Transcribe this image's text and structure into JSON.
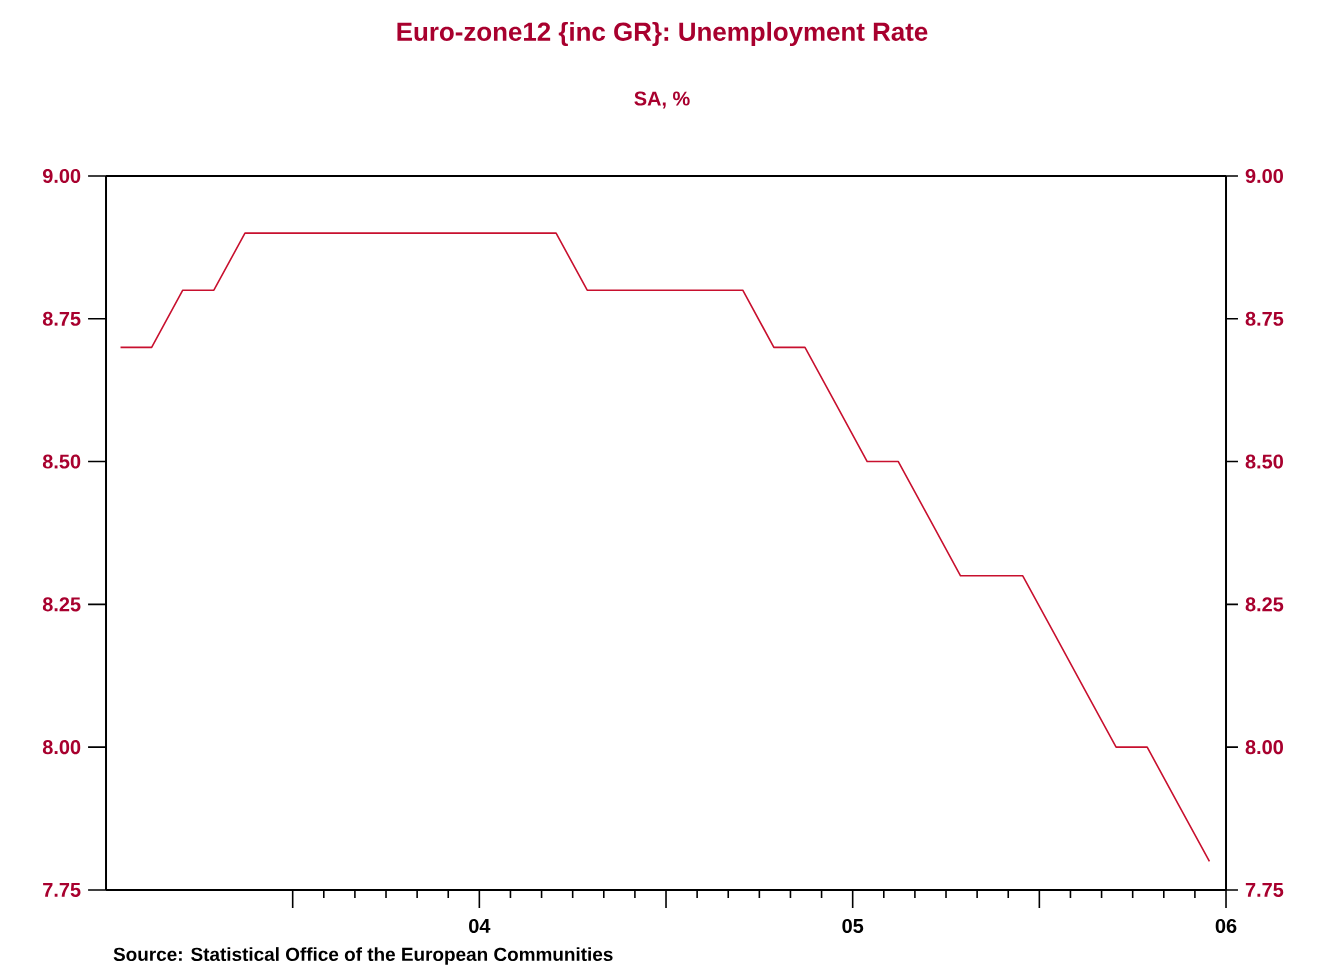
{
  "chart_data": {
    "type": "line",
    "title": "Euro-zone12 {inc GR}: Unemployment Rate",
    "subtitle": "SA, %",
    "annotations": [
      "Source:  Statistical Office of the European Communities"
    ],
    "x": [
      "2003-01-15",
      "2003-02-15",
      "2003-03-15",
      "2003-04-15",
      "2003-05-15",
      "2003-06-15",
      "2003-07-15",
      "2003-08-15",
      "2003-09-15",
      "2003-10-15",
      "2003-11-15",
      "2003-12-15",
      "2004-01-15",
      "2004-02-15",
      "2004-03-15",
      "2004-04-15",
      "2004-05-15",
      "2004-06-15",
      "2004-07-15",
      "2004-08-15",
      "2004-09-15",
      "2004-10-15",
      "2004-11-15",
      "2004-12-15",
      "2005-01-15",
      "2005-02-15",
      "2005-03-15",
      "2005-04-15",
      "2005-05-15",
      "2005-06-15",
      "2005-07-15",
      "2005-08-15",
      "2005-09-15",
      "2005-10-15",
      "2005-11-15",
      "2005-12-15"
    ],
    "values": [
      8.7,
      8.7,
      8.8,
      8.8,
      8.9,
      8.9,
      8.9,
      8.9,
      8.9,
      8.9,
      8.9,
      8.9,
      8.9,
      8.9,
      8.9,
      8.8,
      8.8,
      8.8,
      8.8,
      8.8,
      8.8,
      8.7,
      8.7,
      8.6,
      8.5,
      8.5,
      8.4,
      8.3,
      8.3,
      8.3,
      8.2,
      8.1,
      8.0,
      8.0,
      7.9,
      7.8
    ],
    "color": "#c8102e",
    "line_style": "solid",
    "marker": "none",
    "xlim": [
      "2003-01-01",
      "2006-01-01"
    ],
    "xticks": [
      {
        "value": "2003-07-01",
        "label": null
      },
      {
        "value": "2004-01-01",
        "label": "04"
      },
      {
        "value": "2004-07-01",
        "label": null
      },
      {
        "value": "2005-01-01",
        "label": "05"
      },
      {
        "value": "2005-07-01",
        "label": null
      },
      {
        "value": "2006-01-01",
        "label": "06"
      }
    ],
    "ylim": [
      7.75,
      9.0
    ],
    "yticks": [
      {
        "value": 7.75,
        "label": "7.75"
      },
      {
        "value": 8.0,
        "label": "8.00"
      },
      {
        "value": 8.25,
        "label": "8.25"
      },
      {
        "value": 8.5,
        "label": "8.50"
      },
      {
        "value": 8.75,
        "label": "8.75"
      },
      {
        "value": 9.0,
        "label": "9.00"
      }
    ],
    "y2lim": [
      7.75,
      9.0
    ],
    "y2ticks": [
      {
        "value": 7.75,
        "label": "7.75"
      },
      {
        "value": 8.0,
        "label": "8.00"
      },
      {
        "value": 8.25,
        "label": "8.25"
      },
      {
        "value": 8.5,
        "label": "8.50"
      },
      {
        "value": 8.75,
        "label": "8.75"
      },
      {
        "value": 9.0,
        "label": "9.00"
      }
    ]
  }
}
